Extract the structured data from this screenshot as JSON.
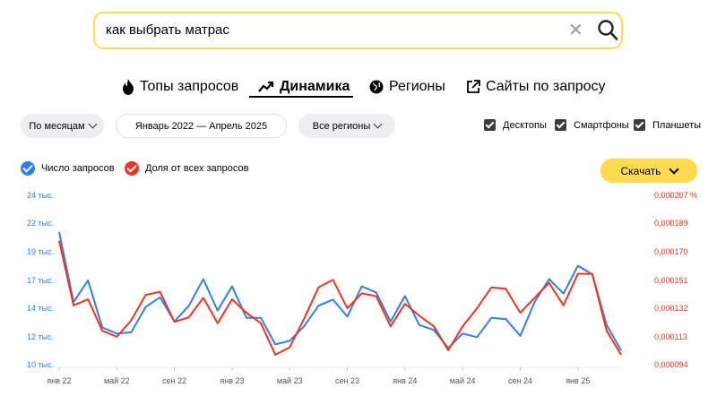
{
  "search": {
    "query": "как выбрать матрас"
  },
  "tabs": [
    {
      "label": "Топы запросов",
      "active": false,
      "icon": "fire-icon"
    },
    {
      "label": "Динамика",
      "active": true,
      "icon": "trend-icon"
    },
    {
      "label": "Регионы",
      "active": false,
      "icon": "globe-icon"
    },
    {
      "label": "Сайты по запросу",
      "active": false,
      "icon": "external-link-icon"
    }
  ],
  "filters": {
    "period": "По месяцам",
    "range": "Январь 2022 — Апрель 2025",
    "regions": "Все регионы"
  },
  "devices": [
    {
      "label": "Десктопы",
      "checked": true
    },
    {
      "label": "Смартфоны",
      "checked": true
    },
    {
      "label": "Планшеты",
      "checked": true
    }
  ],
  "download_label": "Скачать",
  "colors": {
    "accent": "#ffdb4d",
    "blue": "#2f80ed",
    "red": "#f3331c"
  },
  "chart_data": {
    "type": "line",
    "legend": [
      "Число запросов",
      "Доля от всех запросов"
    ],
    "x_ticks": [
      "янв 22",
      "май 22",
      "сен 22",
      "янв 23",
      "май 23",
      "сен 23",
      "янв 24",
      "май 24",
      "сен 24",
      "янв 25"
    ],
    "y_left_ticks": [
      "24 тыс.",
      "22 тыс.",
      "19 тыс.",
      "17 тыс.",
      "14 тыс.",
      "12 тыс.",
      "10 тыс."
    ],
    "y_right_ticks": [
      "0,000207 %",
      "0,000189",
      "0,000170",
      "0,000151",
      "0,000132",
      "0,000113",
      "0,000094"
    ],
    "y_left_range": [
      10,
      24
    ],
    "y_right_range": [
      9.4e-05,
      0.000207
    ],
    "x_start": "2022-01",
    "series": [
      {
        "name": "Число запросов",
        "axis": "left",
        "color": "#2f80ed",
        "values": [
          20.9,
          15.1,
          16.9,
          13.0,
          12.5,
          12.6,
          14.7,
          15.5,
          13.5,
          14.8,
          17.0,
          14.4,
          16.4,
          13.8,
          13.8,
          11.6,
          11.9,
          13.1,
          14.8,
          15.3,
          13.9,
          16.4,
          15.9,
          13.5,
          15.6,
          13.2,
          12.8,
          11.3,
          12.5,
          12.2,
          13.8,
          13.7,
          12.3,
          15.1,
          17.0,
          15.8,
          18.1,
          17.4,
          13.2,
          11.1
        ],
        "unit": "тыс."
      },
      {
        "name": "Доля от всех запросов",
        "axis": "right",
        "color": "#f3331c",
        "values": [
          0.000176,
          0.000133,
          0.000137,
          0.000116,
          0.000112,
          0.000123,
          0.00014,
          0.000142,
          0.000122,
          0.000125,
          0.000138,
          0.000121,
          0.000137,
          0.000128,
          0.000121,
          0.0001,
          0.000105,
          0.000124,
          0.000145,
          0.00015,
          0.000131,
          0.000141,
          0.000139,
          0.000119,
          0.000134,
          0.000126,
          0.000119,
          0.000103,
          0.000119,
          0.000131,
          0.000145,
          0.000144,
          0.000128,
          0.000138,
          0.000148,
          0.000133,
          0.000154,
          0.000154,
          0.000116,
          0.0001
        ]
      }
    ]
  }
}
